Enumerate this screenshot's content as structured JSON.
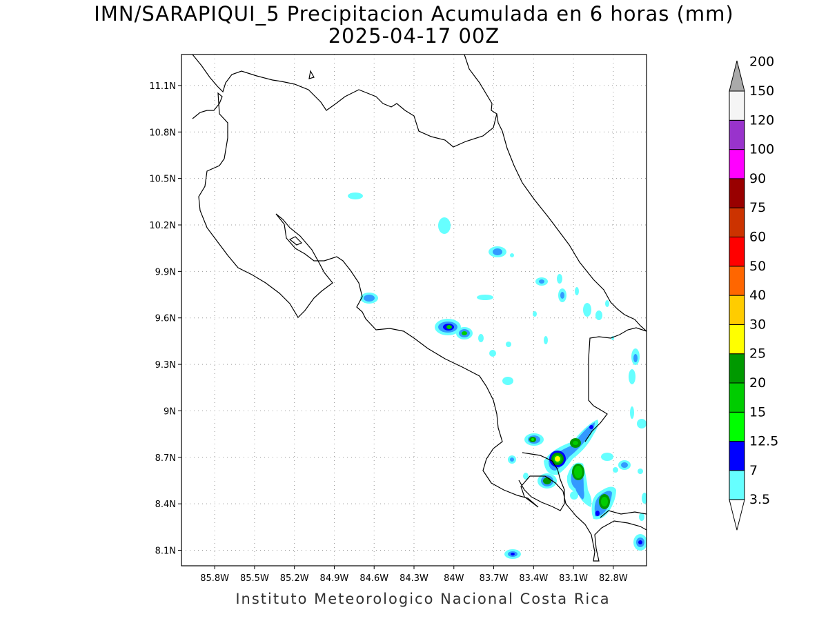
{
  "title_line1": "IMN/SARAPIQUI_5 Precipitacion Acumulada en 6 horas (mm)",
  "title_line2": "2025-04-17 00Z",
  "footer": "Instituto Meteorologico Nacional Costa Rica",
  "map": {
    "lon_range": [
      -86.05,
      -82.55
    ],
    "lat_range": [
      8.0,
      11.3
    ],
    "lon_ticks": [
      "85.8W",
      "85.5W",
      "85.2W",
      "84.9W",
      "84.6W",
      "84.3W",
      "84W",
      "83.7W",
      "83.4W",
      "83.1W",
      "82.8W"
    ],
    "lat_ticks": [
      "11.1N",
      "10.8N",
      "10.5N",
      "10.2N",
      "9.9N",
      "9.6N",
      "9.3N",
      "9N",
      "8.7N",
      "8.4N",
      "8.1N"
    ],
    "gridlines": "dotted"
  },
  "colorbar": {
    "levels": [
      "3.5",
      "7",
      "12.5",
      "15",
      "20",
      "25",
      "30",
      "40",
      "50",
      "60",
      "75",
      "90",
      "100",
      "120",
      "150",
      "200"
    ],
    "colors": [
      "#66ffff",
      "#3399ff",
      "#0000ff",
      "#00ff00",
      "#00cc00",
      "#009900",
      "#ffff00",
      "#ffcc00",
      "#ff6600",
      "#ff0000",
      "#cc3300",
      "#990000",
      "#ff00ff",
      "#9933cc",
      "#f5f5f5",
      "#aaaaaa"
    ]
  }
}
